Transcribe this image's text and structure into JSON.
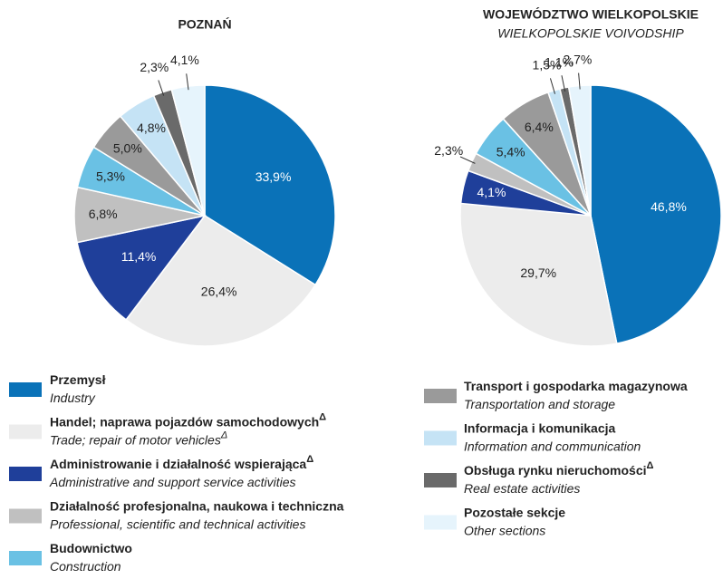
{
  "chart_data": [
    {
      "type": "pie",
      "title": "POZNAŃ",
      "categories": [
        "Przemysł",
        "Handel; naprawa pojazdów samochodowych",
        "Administrowanie i działalność wspierająca",
        "Działalność profesjonalna, naukowa i techniczna",
        "Budownictwo",
        "Transport i gospodarka magazynowa",
        "Informacja i komunikacja",
        "Obsługa rynku nieruchomości",
        "Pozostałe sekcje"
      ],
      "values": [
        33.9,
        26.4,
        11.4,
        6.8,
        5.3,
        5.0,
        4.8,
        2.3,
        4.1
      ],
      "value_labels": [
        "33,9%",
        "26,4%",
        "11,4%",
        "6,8%",
        "5,3%",
        "5,0%",
        "4,8%",
        "2,3%",
        "4,1%"
      ],
      "colors": [
        "#0a72b8",
        "#ececec",
        "#1f3f9a",
        "#c0c0c0",
        "#6ac1e4",
        "#9a9a9a",
        "#c5e3f5",
        "#6a6a6a",
        "#e6f4fc"
      ]
    },
    {
      "type": "pie",
      "title": "WOJEWÓDZTWO WIELKOPOLSKIE",
      "subtitle": "WIELKOPOLSKIE VOIVODSHIP",
      "categories": [
        "Przemysł",
        "Handel; naprawa pojazdów samochodowych",
        "Administrowanie i działalność wspierająca",
        "Działalność profesjonalna, naukowa i techniczna",
        "Budownictwo",
        "Transport i gospodarka magazynowa",
        "Informacja i komunikacja",
        "Obsługa rynku nieruchomości",
        "Pozostałe sekcje"
      ],
      "values": [
        46.8,
        29.7,
        4.1,
        2.3,
        5.4,
        6.4,
        1.5,
        1.1,
        2.7
      ],
      "value_labels": [
        "46,8%",
        "29,7%",
        "4,1%",
        "2,3%",
        "5,4%",
        "6,4%",
        "1,5%",
        "1,1%",
        "2,7%"
      ],
      "colors": [
        "#0a72b8",
        "#ececec",
        "#1f3f9a",
        "#c0c0c0",
        "#6ac1e4",
        "#9a9a9a",
        "#c5e3f5",
        "#6a6a6a",
        "#e6f4fc"
      ]
    }
  ],
  "legend": [
    {
      "label": "Przemysł",
      "translation": "Industry"
    },
    {
      "label": "Handel; naprawa pojazdów samochodowych",
      "label_sup": "Δ",
      "translation": "Trade; repair of motor vehicles",
      "translation_sup": "Δ"
    },
    {
      "label": "Administrowanie i działalność wspierająca",
      "label_sup": "Δ",
      "translation": "Administrative and support service activities"
    },
    {
      "label": "Działalność profesjonalna, naukowa i techniczna",
      "translation": "Professional, scientific and technical activities"
    },
    {
      "label": "Budownictwo",
      "translation": "Construction"
    },
    {
      "label": "Transport i gospodarka magazynowa",
      "translation": "Transportation and storage"
    },
    {
      "label": "Informacja i komunikacja",
      "translation": "Information and communication"
    },
    {
      "label": "Obsługa rynku nieruchomości",
      "label_sup": "Δ",
      "translation": "Real estate activities"
    },
    {
      "label": "Pozostałe sekcje",
      "translation": "Other sections"
    }
  ]
}
